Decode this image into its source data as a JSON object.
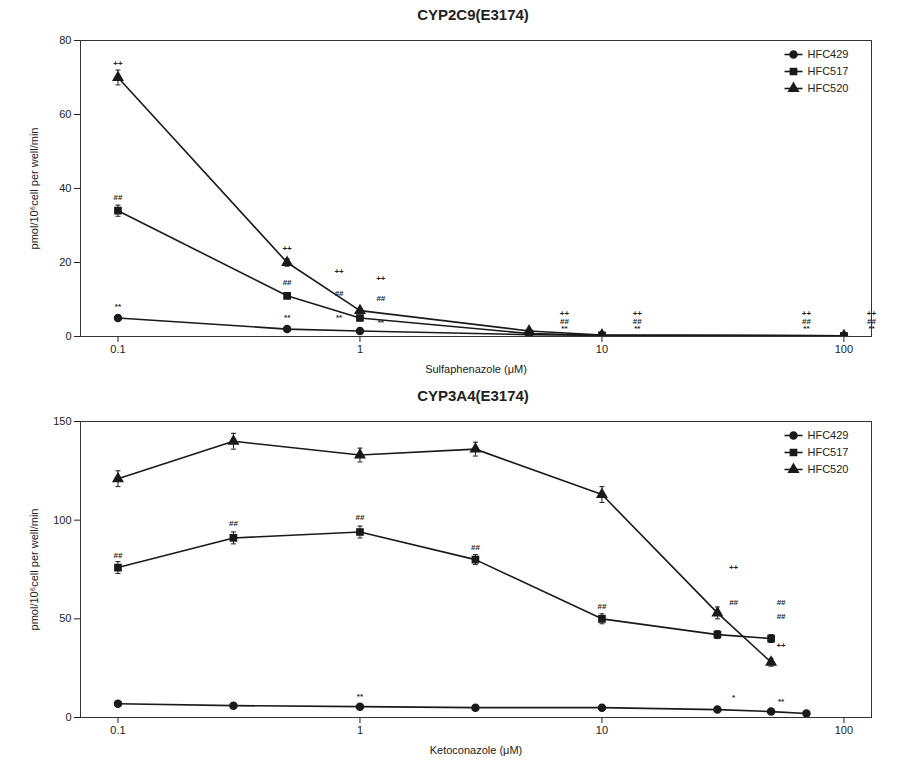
{
  "chart_data": [
    {
      "type": "line",
      "title": "CYP2C9(E3174)",
      "xlabel": "Sulfaphenazole (μM)",
      "ylabel": "pmol/10⁶cell per well/min",
      "log": "x",
      "xlim": [
        0.07,
        130
      ],
      "xticks": [
        0.1,
        1,
        10,
        100
      ],
      "ylim": [
        0,
        80
      ],
      "yticks": [
        0,
        20,
        40,
        60,
        80
      ],
      "legend": "upper right",
      "series": [
        {
          "name": "HFC429",
          "color": "#1a1a1a",
          "marker": "circle",
          "x": [
            0.1,
            0.5,
            1.0,
            5.0,
            10.0,
            100.0
          ],
          "values": [
            5.0,
            2.0,
            1.5,
            0.5,
            0.3,
            0.2
          ],
          "errors": [
            0.3,
            0.2,
            0.15,
            0.08,
            0.05,
            0.04
          ]
        },
        {
          "name": "HFC517",
          "color": "#1a1a1a",
          "marker": "square",
          "x": [
            0.1,
            0.5,
            1.0,
            5.0,
            10.0,
            100.0
          ],
          "values": [
            34.0,
            11.0,
            5.0,
            0.8,
            0.3,
            0.2
          ],
          "errors": [
            1.5,
            0.7,
            0.4,
            0.1,
            0.05,
            0.04
          ]
        },
        {
          "name": "HFC520",
          "color": "#1a1a1a",
          "marker": "triangle",
          "x": [
            0.1,
            0.5,
            1.0,
            5.0,
            10.0,
            100.0
          ],
          "values": [
            70.0,
            20.0,
            7.0,
            1.5,
            0.4,
            0.2
          ],
          "errors": [
            2.0,
            1.0,
            0.6,
            0.15,
            0.06,
            0.04
          ]
        }
      ],
      "annotations": [
        {
          "x": 0.1,
          "y": 73,
          "text": "++"
        },
        {
          "x": 0.1,
          "y": 37,
          "text": "##"
        },
        {
          "x": 0.1,
          "y": 7.5,
          "text": "**"
        },
        {
          "x": 0.5,
          "y": 23,
          "text": "++"
        },
        {
          "x": 0.5,
          "y": 14,
          "text": "##"
        },
        {
          "x": 0.5,
          "y": 4.5,
          "text": "**"
        },
        {
          "x": 0.82,
          "y": 17,
          "text": "++"
        },
        {
          "x": 1.22,
          "y": 15,
          "text": "++"
        },
        {
          "x": 0.82,
          "y": 11,
          "text": "##"
        },
        {
          "x": 1.22,
          "y": 9.5,
          "text": "##"
        },
        {
          "x": 0.82,
          "y": 4.5,
          "text": "**"
        },
        {
          "x": 1.22,
          "y": 3.0,
          "text": "**"
        },
        {
          "x": 7.0,
          "y": 5.5,
          "text": "++"
        },
        {
          "x": 14.0,
          "y": 5.5,
          "text": "++"
        },
        {
          "x": 7.0,
          "y": 3.5,
          "text": "##"
        },
        {
          "x": 14.0,
          "y": 3.5,
          "text": "##"
        },
        {
          "x": 7.0,
          "y": 1.5,
          "text": "**"
        },
        {
          "x": 14.0,
          "y": 1.5,
          "text": "**"
        },
        {
          "x": 70.0,
          "y": 5.5,
          "text": "++"
        },
        {
          "x": 130.0,
          "y": 5.5,
          "text": "++"
        },
        {
          "x": 70.0,
          "y": 3.5,
          "text": "##"
        },
        {
          "x": 130.0,
          "y": 3.5,
          "text": "##"
        },
        {
          "x": 70.0,
          "y": 1.5,
          "text": "**"
        },
        {
          "x": 130.0,
          "y": 1.5,
          "text": "**"
        }
      ]
    },
    {
      "type": "line",
      "title": "CYP3A4(E3174)",
      "xlabel": "Ketoconazole (μM)",
      "ylabel": "pmol/10⁶cell per well/min",
      "log": "x",
      "xlim": [
        0.07,
        130
      ],
      "xticks": [
        0.1,
        1,
        10,
        100
      ],
      "ylim": [
        0,
        150
      ],
      "yticks": [
        0,
        50,
        100,
        150
      ],
      "legend": "upper right",
      "series": [
        {
          "name": "HFC429",
          "color": "#1a1a1a",
          "marker": "circle",
          "x": [
            0.1,
            0.3,
            1.0,
            3.0,
            10.0,
            30.0,
            50.0,
            70.0
          ],
          "values": [
            7.0,
            6.0,
            5.5,
            5.0,
            5.0,
            4.0,
            3.0,
            2.0
          ],
          "errors": [
            0.5,
            0.3,
            0.3,
            0.3,
            0.3,
            0.2,
            0.2,
            0.2
          ]
        },
        {
          "name": "HFC517",
          "color": "#1a1a1a",
          "marker": "square",
          "x": [
            0.1,
            0.3,
            1.0,
            3.0,
            10.0,
            30.0,
            50.0
          ],
          "values": [
            76.0,
            91.0,
            94.0,
            80.0,
            50.0,
            42.0,
            40.0
          ],
          "errors": [
            3.0,
            3.0,
            3.0,
            2.5,
            2.5,
            2.0,
            2.0
          ]
        },
        {
          "name": "HFC520",
          "color": "#1a1a1a",
          "marker": "triangle",
          "x": [
            0.1,
            0.3,
            1.0,
            3.0,
            10.0,
            30.0,
            50.0
          ],
          "values": [
            121.0,
            140.0,
            133.0,
            136.0,
            113.0,
            53.0,
            28.0
          ],
          "errors": [
            4.0,
            4.0,
            3.5,
            3.5,
            4.0,
            3.0,
            2.0
          ]
        }
      ],
      "annotations": [
        {
          "x": 0.1,
          "y": 81,
          "text": "##"
        },
        {
          "x": 0.3,
          "y": 97,
          "text": "##"
        },
        {
          "x": 1.0,
          "y": 100,
          "text": "##"
        },
        {
          "x": 1.0,
          "y": 9.5,
          "text": "**"
        },
        {
          "x": 3.0,
          "y": 85,
          "text": "##"
        },
        {
          "x": 10.0,
          "y": 55,
          "text": "##"
        },
        {
          "x": 35.0,
          "y": 75,
          "text": "++"
        },
        {
          "x": 35.0,
          "y": 57,
          "text": "##"
        },
        {
          "x": 35.0,
          "y": 9,
          "text": "*"
        },
        {
          "x": 55.0,
          "y": 57,
          "text": "##"
        },
        {
          "x": 55.0,
          "y": 50,
          "text": "##"
        },
        {
          "x": 55.0,
          "y": 35,
          "text": "++"
        },
        {
          "x": 55.0,
          "y": 7,
          "text": "**"
        }
      ]
    }
  ]
}
